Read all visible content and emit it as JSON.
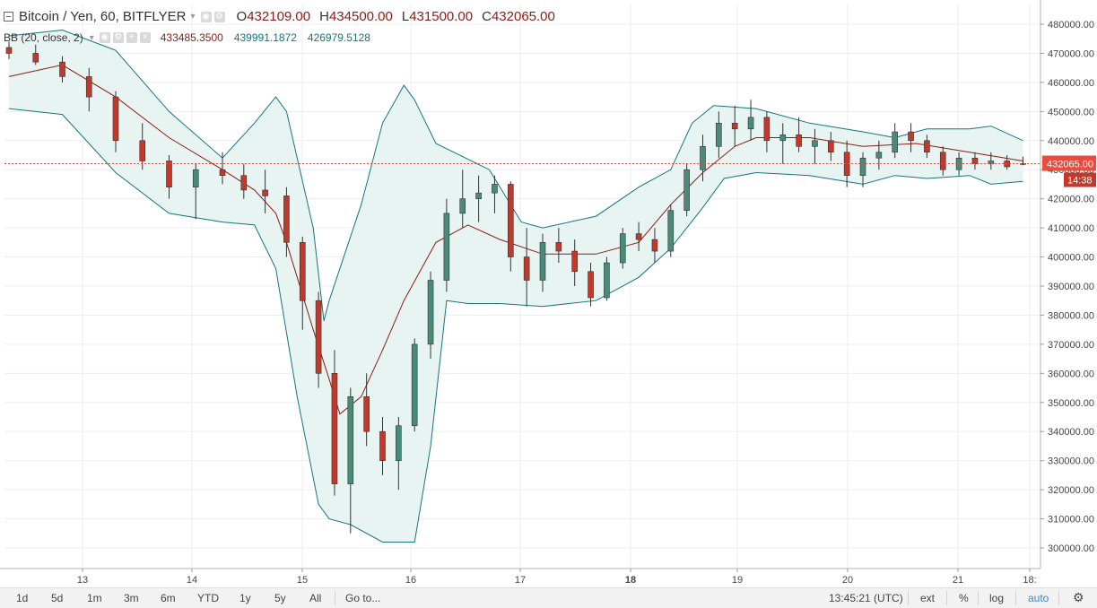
{
  "legend": {
    "symbol": "Bitcoin / Yen, 60, BITFLYER",
    "caret": "▾",
    "icons": [
      "eye-icon",
      "settings-icon"
    ],
    "ohlc": [
      {
        "key": "O",
        "value": "432109.00"
      },
      {
        "key": "H",
        "value": "434500.00"
      },
      {
        "key": "L",
        "value": "431500.00"
      },
      {
        "key": "C",
        "value": "432065.00"
      }
    ],
    "indicator": {
      "name": "BB (20, close, 2)",
      "caret": "▾",
      "icons": [
        "eye-icon",
        "settings-icon",
        "add-icon",
        "close-icon"
      ],
      "middle": "433485.3500",
      "upper": "439991.1872",
      "lower": "426979.5128"
    }
  },
  "chart_data": {
    "type": "candlestick",
    "price_axis": {
      "min": 300000,
      "max": 480000,
      "tick_labels": [
        "480000.00",
        "470000.00",
        "460000.00",
        "450000.00",
        "440000.00",
        "430000.00",
        "420000.00",
        "410000.00",
        "400000.00",
        "390000.00",
        "380000.00",
        "370000.00",
        "360000.00",
        "350000.00",
        "340000.00",
        "330000.00",
        "320000.00",
        "310000.00",
        "300000.00"
      ],
      "last_price_label": "432065.00",
      "countdown_label": "14:38",
      "last_price": 432065
    },
    "time_axis": {
      "tick_labels": [
        "13",
        "14",
        "15",
        "16",
        "17",
        "18",
        "19",
        "20",
        "21",
        "18:"
      ],
      "bold_labels": [
        "18"
      ]
    },
    "bollinger": {
      "upper": [
        [
          0,
          476000
        ],
        [
          0.5,
          478000
        ],
        [
          1,
          471000
        ],
        [
          1.5,
          450000
        ],
        [
          2,
          434000
        ],
        [
          2.3,
          446000
        ],
        [
          2.5,
          455000
        ],
        [
          2.6,
          450000
        ],
        [
          2.85,
          410000
        ],
        [
          2.95,
          378000
        ],
        [
          3.0,
          385000
        ],
        [
          3.3,
          418000
        ],
        [
          3.5,
          446000
        ],
        [
          3.7,
          459000
        ],
        [
          3.8,
          454000
        ],
        [
          4,
          439000
        ],
        [
          4.5,
          430000
        ],
        [
          4.8,
          412000
        ],
        [
          5,
          410000
        ],
        [
          5.5,
          414000
        ],
        [
          5.9,
          424000
        ],
        [
          6.2,
          430000
        ],
        [
          6.4,
          446000
        ],
        [
          6.6,
          452000
        ],
        [
          7,
          451000
        ],
        [
          7.5,
          446000
        ],
        [
          8,
          443000
        ],
        [
          8.3,
          441000
        ],
        [
          8.6,
          444000
        ],
        [
          9,
          444000
        ],
        [
          9.2,
          445000
        ],
        [
          9.5,
          440000
        ]
      ],
      "middle": [
        [
          0,
          462000
        ],
        [
          0.5,
          466000
        ],
        [
          1,
          455000
        ],
        [
          1.5,
          441000
        ],
        [
          2,
          430000
        ],
        [
          2.3,
          423000
        ],
        [
          2.5,
          415000
        ],
        [
          2.6,
          405000
        ],
        [
          2.85,
          375000
        ],
        [
          3,
          358000
        ],
        [
          3.1,
          346000
        ],
        [
          3.3,
          352000
        ],
        [
          3.5,
          368000
        ],
        [
          3.7,
          385000
        ],
        [
          4,
          405000
        ],
        [
          4.3,
          411000
        ],
        [
          4.6,
          406000
        ],
        [
          5,
          401000
        ],
        [
          5.5,
          401000
        ],
        [
          5.9,
          405000
        ],
        [
          6.2,
          418000
        ],
        [
          6.5,
          429000
        ],
        [
          6.8,
          438000
        ],
        [
          7,
          441000
        ],
        [
          7.5,
          441000
        ],
        [
          8,
          438000
        ],
        [
          8.5,
          439000
        ],
        [
          9,
          436000
        ],
        [
          9.5,
          433000
        ]
      ],
      "lower": [
        [
          0,
          451000
        ],
        [
          0.5,
          449000
        ],
        [
          1,
          429000
        ],
        [
          1.5,
          415000
        ],
        [
          2,
          412000
        ],
        [
          2.3,
          411000
        ],
        [
          2.5,
          396000
        ],
        [
          2.7,
          352000
        ],
        [
          2.9,
          315000
        ],
        [
          3,
          310000
        ],
        [
          3.2,
          308000
        ],
        [
          3.5,
          302000
        ],
        [
          3.8,
          302000
        ],
        [
          3.95,
          335000
        ],
        [
          4.1,
          385000
        ],
        [
          4.3,
          384000
        ],
        [
          4.6,
          384000
        ],
        [
          5,
          383000
        ],
        [
          5.5,
          385000
        ],
        [
          5.9,
          393000
        ],
        [
          6.2,
          403000
        ],
        [
          6.5,
          417000
        ],
        [
          6.7,
          427000
        ],
        [
          7,
          429000
        ],
        [
          7.5,
          428000
        ],
        [
          8,
          425000
        ],
        [
          8.3,
          428000
        ],
        [
          8.6,
          427000
        ],
        [
          9,
          428000
        ],
        [
          9.2,
          425000
        ],
        [
          9.5,
          426000
        ]
      ]
    },
    "candles": [
      [
        0,
        472000,
        474000,
        468000,
        470000
      ],
      [
        0.25,
        470000,
        473000,
        466000,
        467000
      ],
      [
        0.5,
        467000,
        469000,
        460000,
        462000
      ],
      [
        0.75,
        462000,
        465000,
        450000,
        455000
      ],
      [
        1,
        455000,
        457000,
        436000,
        440000
      ],
      [
        1.25,
        440000,
        446000,
        430000,
        433000
      ],
      [
        1.5,
        433000,
        435000,
        420000,
        424000
      ],
      [
        1.75,
        424000,
        432000,
        413000,
        430000
      ],
      [
        2,
        430000,
        436000,
        425000,
        428000
      ],
      [
        2.2,
        428000,
        432000,
        420000,
        423000
      ],
      [
        2.4,
        423000,
        430000,
        415000,
        421000
      ],
      [
        2.6,
        421000,
        424000,
        400000,
        405000
      ],
      [
        2.75,
        405000,
        407000,
        375000,
        385000
      ],
      [
        2.9,
        385000,
        388000,
        355000,
        360000
      ],
      [
        3.05,
        360000,
        368000,
        318000,
        322000
      ],
      [
        3.2,
        322000,
        355000,
        305000,
        352000
      ],
      [
        3.35,
        352000,
        360000,
        335000,
        340000
      ],
      [
        3.5,
        340000,
        345000,
        325000,
        330000
      ],
      [
        3.65,
        330000,
        345000,
        320000,
        342000
      ],
      [
        3.8,
        342000,
        372000,
        340000,
        370000
      ],
      [
        3.95,
        370000,
        395000,
        365000,
        392000
      ],
      [
        4.1,
        392000,
        420000,
        388000,
        415000
      ],
      [
        4.25,
        415000,
        430000,
        410000,
        420000
      ],
      [
        4.4,
        420000,
        428000,
        412000,
        422000
      ],
      [
        4.55,
        422000,
        428000,
        415000,
        425000
      ],
      [
        4.7,
        425000,
        426000,
        395000,
        400000
      ],
      [
        4.85,
        400000,
        410000,
        383000,
        392000
      ],
      [
        5,
        392000,
        408000,
        388000,
        405000
      ],
      [
        5.15,
        405000,
        410000,
        398000,
        402000
      ],
      [
        5.3,
        402000,
        406000,
        390000,
        395000
      ],
      [
        5.45,
        395000,
        398000,
        383000,
        386000
      ],
      [
        5.6,
        386000,
        400000,
        385000,
        398000
      ],
      [
        5.75,
        398000,
        410000,
        396000,
        408000
      ],
      [
        5.9,
        408000,
        412000,
        402000,
        406000
      ],
      [
        6.05,
        406000,
        410000,
        398000,
        402000
      ],
      [
        6.2,
        402000,
        418000,
        400000,
        416000
      ],
      [
        6.35,
        416000,
        432000,
        414000,
        430000
      ],
      [
        6.5,
        430000,
        442000,
        426000,
        438000
      ],
      [
        6.65,
        438000,
        450000,
        434000,
        446000
      ],
      [
        6.8,
        446000,
        452000,
        438000,
        444000
      ],
      [
        6.95,
        444000,
        454000,
        440000,
        448000
      ],
      [
        7.1,
        448000,
        450000,
        436000,
        440000
      ],
      [
        7.25,
        440000,
        446000,
        432000,
        442000
      ],
      [
        7.4,
        442000,
        448000,
        436000,
        438000
      ],
      [
        7.55,
        438000,
        444000,
        432000,
        440000
      ],
      [
        7.7,
        440000,
        443000,
        433000,
        436000
      ],
      [
        7.85,
        436000,
        440000,
        424000,
        428000
      ],
      [
        8,
        428000,
        436000,
        424000,
        434000
      ],
      [
        8.15,
        434000,
        440000,
        430000,
        436000
      ],
      [
        8.3,
        436000,
        446000,
        434000,
        443000
      ],
      [
        8.45,
        443000,
        446000,
        436000,
        440000
      ],
      [
        8.6,
        440000,
        442000,
        434000,
        436000
      ],
      [
        8.75,
        436000,
        438000,
        428000,
        430000
      ],
      [
        8.9,
        430000,
        436000,
        428000,
        434000
      ],
      [
        9.05,
        434000,
        436000,
        430000,
        432000
      ],
      [
        9.2,
        432000,
        436000,
        430000,
        433000
      ],
      [
        9.35,
        433000,
        435000,
        430000,
        431000
      ],
      [
        9.5,
        432109,
        434500,
        431500,
        432065
      ]
    ]
  },
  "bottom_bar": {
    "ranges": [
      "1d",
      "5d",
      "1m",
      "3m",
      "6m",
      "YTD",
      "1y",
      "5y",
      "All"
    ],
    "goto": "Go to...",
    "time": "13:45:21 (UTC)",
    "ext": "ext",
    "percent": "%",
    "log": "log",
    "auto": "auto",
    "gear_icon": "gear-icon"
  },
  "colors": {
    "up": "#4a8a78",
    "down": "#c0392b",
    "band": "#14757f",
    "mid": "#8c1c14",
    "band_fill": "#e8f4f2",
    "last_price": "#e74c3c",
    "countdown": "#c0392b"
  }
}
